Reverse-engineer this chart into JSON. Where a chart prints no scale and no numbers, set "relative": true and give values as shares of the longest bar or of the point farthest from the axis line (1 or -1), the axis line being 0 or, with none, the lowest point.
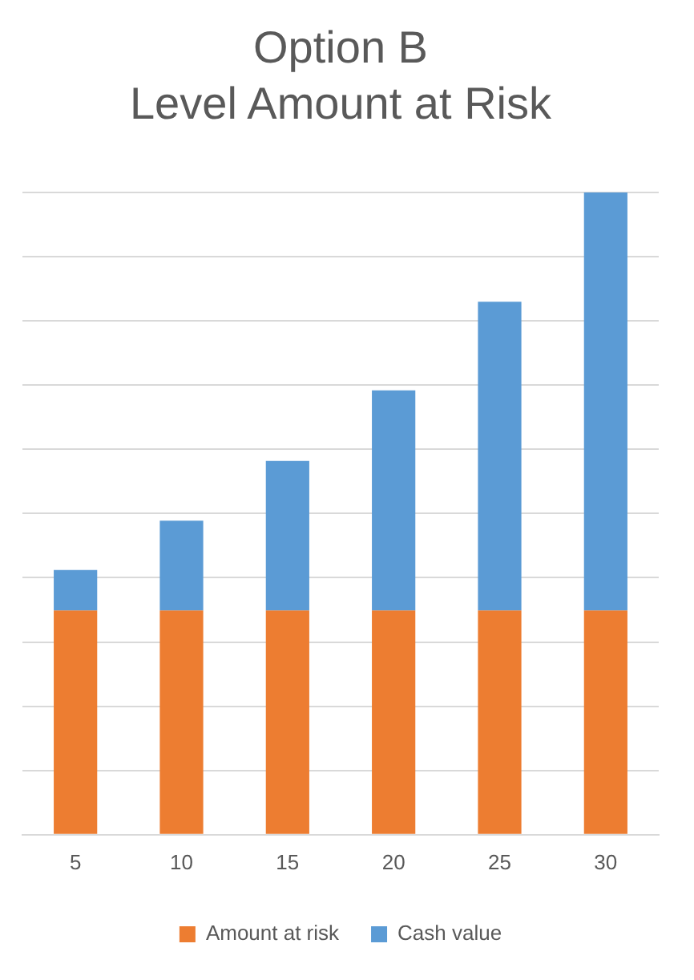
{
  "chart_data": {
    "type": "bar",
    "title": "Option B\nLevel Amount at Risk",
    "stacked": true,
    "relative": true,
    "grid": "y",
    "legend": "bottom",
    "categories": [
      "5",
      "10",
      "15",
      "20",
      "25",
      "30"
    ],
    "series": [
      {
        "name": "Amount at risk",
        "color": "#ed7d31",
        "values": [
          0.349,
          0.349,
          0.349,
          0.349,
          0.349,
          0.349
        ]
      },
      {
        "name": "Cash value",
        "color": "#5b9bd5",
        "values": [
          0.063,
          0.14,
          0.233,
          0.343,
          0.481,
          0.651
        ]
      }
    ]
  }
}
